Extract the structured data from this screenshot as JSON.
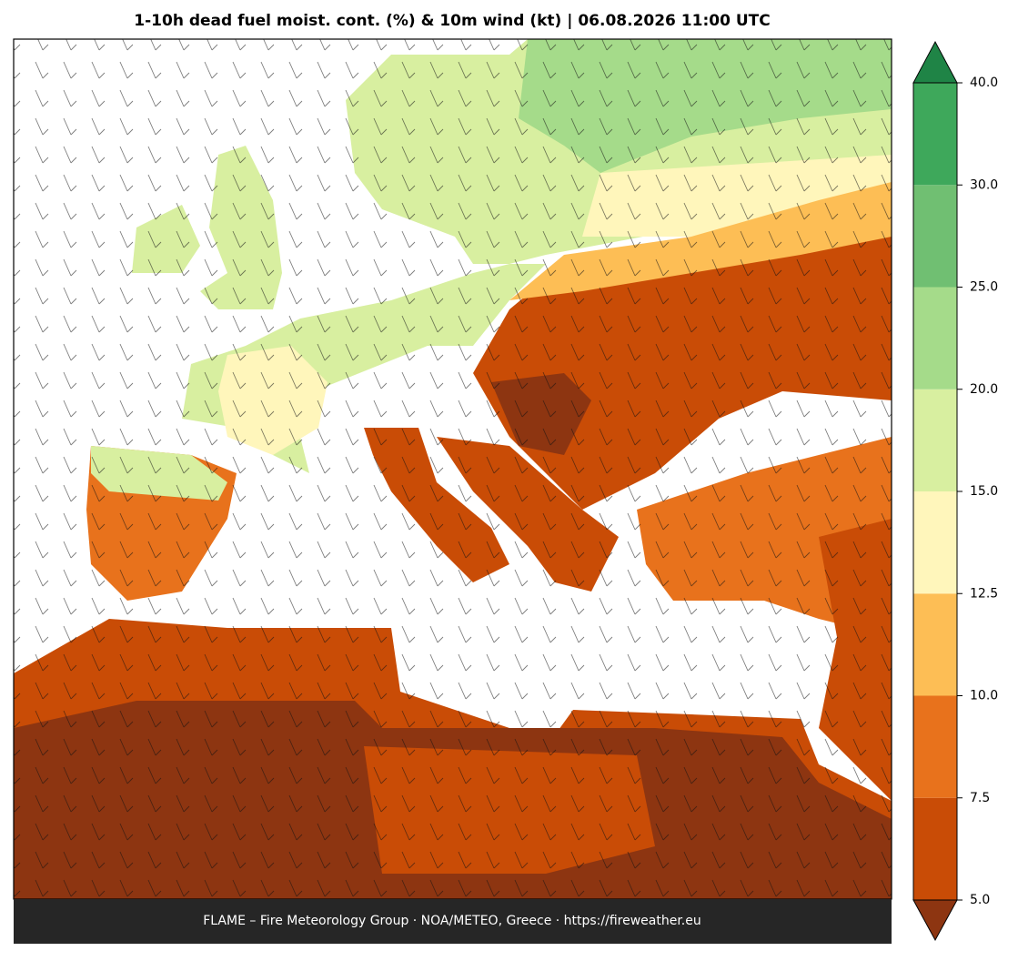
{
  "title": "1-10h dead fuel moist. cont. (%) & 10m wind (kt)  |  06.08.2026 11:00 UTC",
  "colorbar": {
    "ticks": [
      {
        "value": 5,
        "label": "5.0"
      },
      7.5,
      {
        "value": 10,
        "label": "10.0"
      },
      12.5,
      {
        "value": 15,
        "label": "15.0"
      },
      {
        "value": 20,
        "label": "20.0"
      },
      {
        "value": 25,
        "label": "25.0"
      },
      {
        "value": 30,
        "label": "30.0"
      },
      {
        "value": 40,
        "label": "40.0"
      }
    ],
    "colors": [
      "#c94c06",
      "#e8721c",
      "#fdbe55",
      "#fff6bb",
      "#d8efa0",
      "#a5db8a",
      "#70bf72",
      "#3ea85b"
    ],
    "under_color": "#8d3511",
    "over_color": "#1f8446"
  },
  "footer": "FLAME – Fire Meteorology Group · NOA/METEO, Greece · https://fireweather.eu"
}
